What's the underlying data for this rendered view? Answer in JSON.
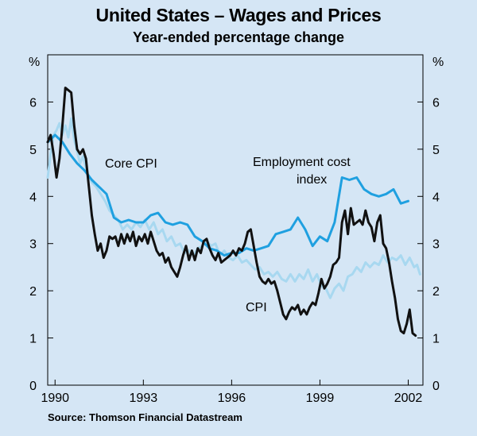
{
  "chart_data": {
    "type": "line",
    "title": "United States – Wages and Prices",
    "subtitle": "Year-ended percentage change",
    "ylabel_left": "%",
    "ylabel_right": "%",
    "ylim": [
      0,
      7
    ],
    "xlim": [
      1989.75,
      2002.5
    ],
    "y_ticks": [
      "0",
      "1",
      "2",
      "3",
      "4",
      "5",
      "6"
    ],
    "x_ticks": [
      {
        "label": "1990",
        "value": 1990
      },
      {
        "label": "1993",
        "value": 1993
      },
      {
        "label": "1996",
        "value": 1996
      },
      {
        "label": "1999",
        "value": 1999
      },
      {
        "label": "2002",
        "value": 2002
      }
    ],
    "series": [
      {
        "name": "Core CPI",
        "color": "#a8d8f0",
        "points": [
          [
            1989.75,
            4.4
          ],
          [
            1989.85,
            4.9
          ],
          [
            1989.95,
            5.3
          ],
          [
            1990.05,
            5.4
          ],
          [
            1990.15,
            5.55
          ],
          [
            1990.25,
            5.3
          ],
          [
            1990.35,
            5.5
          ],
          [
            1990.45,
            5.25
          ],
          [
            1990.55,
            5.65
          ],
          [
            1990.65,
            5.2
          ],
          [
            1990.75,
            4.95
          ],
          [
            1990.85,
            4.7
          ],
          [
            1990.95,
            4.85
          ],
          [
            1991.1,
            4.5
          ],
          [
            1991.25,
            4.3
          ],
          [
            1991.4,
            4.2
          ],
          [
            1991.55,
            4.05
          ],
          [
            1991.7,
            3.9
          ],
          [
            1991.85,
            3.7
          ],
          [
            1992.0,
            3.6
          ],
          [
            1992.15,
            3.5
          ],
          [
            1992.3,
            3.3
          ],
          [
            1992.45,
            3.4
          ],
          [
            1992.6,
            3.3
          ],
          [
            1992.75,
            3.45
          ],
          [
            1992.9,
            3.35
          ],
          [
            1993.05,
            3.5
          ],
          [
            1993.2,
            3.3
          ],
          [
            1993.35,
            3.45
          ],
          [
            1993.5,
            3.2
          ],
          [
            1993.65,
            3.3
          ],
          [
            1993.8,
            3.05
          ],
          [
            1993.95,
            3.15
          ],
          [
            1994.1,
            2.95
          ],
          [
            1994.25,
            3.0
          ],
          [
            1994.4,
            2.8
          ],
          [
            1994.55,
            2.85
          ],
          [
            1994.7,
            2.75
          ],
          [
            1994.85,
            2.9
          ],
          [
            1995.0,
            2.95
          ],
          [
            1995.15,
            3.05
          ],
          [
            1995.3,
            2.95
          ],
          [
            1995.45,
            3.0
          ],
          [
            1995.6,
            2.75
          ],
          [
            1995.75,
            2.85
          ],
          [
            1995.9,
            2.7
          ],
          [
            1996.05,
            2.65
          ],
          [
            1996.2,
            2.75
          ],
          [
            1996.35,
            2.6
          ],
          [
            1996.5,
            2.65
          ],
          [
            1996.65,
            2.55
          ],
          [
            1996.8,
            2.45
          ],
          [
            1996.95,
            2.5
          ],
          [
            1997.1,
            2.35
          ],
          [
            1997.25,
            2.4
          ],
          [
            1997.4,
            2.3
          ],
          [
            1997.55,
            2.4
          ],
          [
            1997.7,
            2.25
          ],
          [
            1997.85,
            2.2
          ],
          [
            1998.0,
            2.35
          ],
          [
            1998.15,
            2.2
          ],
          [
            1998.3,
            2.35
          ],
          [
            1998.45,
            2.25
          ],
          [
            1998.6,
            2.45
          ],
          [
            1998.75,
            2.2
          ],
          [
            1998.9,
            2.35
          ],
          [
            1999.05,
            2.1
          ],
          [
            1999.2,
            2.05
          ],
          [
            1999.35,
            1.85
          ],
          [
            1999.5,
            2.05
          ],
          [
            1999.65,
            2.15
          ],
          [
            1999.8,
            2.0
          ],
          [
            1999.95,
            2.3
          ],
          [
            2000.1,
            2.35
          ],
          [
            2000.25,
            2.5
          ],
          [
            2000.4,
            2.4
          ],
          [
            2000.55,
            2.6
          ],
          [
            2000.7,
            2.5
          ],
          [
            2000.85,
            2.6
          ],
          [
            2001.0,
            2.55
          ],
          [
            2001.15,
            2.75
          ],
          [
            2001.3,
            2.6
          ],
          [
            2001.45,
            2.7
          ],
          [
            2001.6,
            2.65
          ],
          [
            2001.75,
            2.75
          ],
          [
            2001.9,
            2.55
          ],
          [
            2002.05,
            2.7
          ],
          [
            2002.2,
            2.5
          ],
          [
            2002.3,
            2.55
          ],
          [
            2002.4,
            2.35
          ]
        ]
      },
      {
        "name": "Employment cost index",
        "color": "#1fa0e0",
        "points": [
          [
            1989.75,
            5.15
          ],
          [
            1990.0,
            5.3
          ],
          [
            1990.25,
            5.15
          ],
          [
            1990.5,
            4.9
          ],
          [
            1990.75,
            4.7
          ],
          [
            1991.0,
            4.55
          ],
          [
            1991.25,
            4.35
          ],
          [
            1991.5,
            4.2
          ],
          [
            1991.75,
            4.05
          ],
          [
            1992.0,
            3.55
          ],
          [
            1992.25,
            3.45
          ],
          [
            1992.5,
            3.5
          ],
          [
            1992.75,
            3.45
          ],
          [
            1993.0,
            3.45
          ],
          [
            1993.25,
            3.6
          ],
          [
            1993.5,
            3.65
          ],
          [
            1993.75,
            3.45
          ],
          [
            1994.0,
            3.4
          ],
          [
            1994.25,
            3.45
          ],
          [
            1994.5,
            3.4
          ],
          [
            1994.75,
            3.15
          ],
          [
            1995.0,
            3.05
          ],
          [
            1995.25,
            2.9
          ],
          [
            1995.5,
            2.85
          ],
          [
            1995.75,
            2.75
          ],
          [
            1996.0,
            2.8
          ],
          [
            1996.25,
            2.8
          ],
          [
            1996.5,
            2.9
          ],
          [
            1996.75,
            2.85
          ],
          [
            1997.0,
            2.9
          ],
          [
            1997.25,
            2.95
          ],
          [
            1997.5,
            3.2
          ],
          [
            1997.75,
            3.25
          ],
          [
            1998.0,
            3.3
          ],
          [
            1998.25,
            3.55
          ],
          [
            1998.5,
            3.3
          ],
          [
            1998.75,
            2.95
          ],
          [
            1999.0,
            3.15
          ],
          [
            1999.25,
            3.05
          ],
          [
            1999.5,
            3.45
          ],
          [
            1999.75,
            4.4
          ],
          [
            2000.0,
            4.35
          ],
          [
            2000.25,
            4.4
          ],
          [
            2000.5,
            4.15
          ],
          [
            2000.75,
            4.05
          ],
          [
            2001.0,
            4.0
          ],
          [
            2001.25,
            4.05
          ],
          [
            2001.5,
            4.15
          ],
          [
            2001.75,
            3.85
          ],
          [
            2002.0,
            3.9
          ]
        ]
      },
      {
        "name": "CPI",
        "color": "#111111",
        "points": [
          [
            1989.75,
            5.15
          ],
          [
            1989.85,
            5.3
          ],
          [
            1989.95,
            4.9
          ],
          [
            1990.05,
            4.4
          ],
          [
            1990.15,
            4.8
          ],
          [
            1990.25,
            5.5
          ],
          [
            1990.35,
            6.3
          ],
          [
            1990.45,
            6.25
          ],
          [
            1990.55,
            6.2
          ],
          [
            1990.65,
            5.5
          ],
          [
            1990.75,
            5.0
          ],
          [
            1990.85,
            4.9
          ],
          [
            1990.95,
            5.0
          ],
          [
            1991.05,
            4.8
          ],
          [
            1991.15,
            4.2
          ],
          [
            1991.25,
            3.6
          ],
          [
            1991.35,
            3.2
          ],
          [
            1991.45,
            2.85
          ],
          [
            1991.55,
            3.0
          ],
          [
            1991.65,
            2.7
          ],
          [
            1991.75,
            2.85
          ],
          [
            1991.85,
            3.15
          ],
          [
            1991.95,
            3.1
          ],
          [
            1992.05,
            3.15
          ],
          [
            1992.15,
            2.95
          ],
          [
            1992.25,
            3.2
          ],
          [
            1992.35,
            3.0
          ],
          [
            1992.45,
            3.2
          ],
          [
            1992.55,
            3.05
          ],
          [
            1992.65,
            3.25
          ],
          [
            1992.75,
            2.95
          ],
          [
            1992.85,
            3.15
          ],
          [
            1992.95,
            3.05
          ],
          [
            1993.05,
            3.2
          ],
          [
            1993.15,
            3.0
          ],
          [
            1993.25,
            3.25
          ],
          [
            1993.35,
            3.05
          ],
          [
            1993.45,
            2.85
          ],
          [
            1993.55,
            2.75
          ],
          [
            1993.65,
            2.8
          ],
          [
            1993.75,
            2.6
          ],
          [
            1993.85,
            2.7
          ],
          [
            1993.95,
            2.5
          ],
          [
            1994.05,
            2.4
          ],
          [
            1994.15,
            2.3
          ],
          [
            1994.25,
            2.5
          ],
          [
            1994.35,
            2.75
          ],
          [
            1994.45,
            2.95
          ],
          [
            1994.55,
            2.65
          ],
          [
            1994.65,
            2.85
          ],
          [
            1994.75,
            2.65
          ],
          [
            1994.85,
            2.9
          ],
          [
            1994.95,
            2.8
          ],
          [
            1995.05,
            3.05
          ],
          [
            1995.15,
            3.1
          ],
          [
            1995.25,
            2.9
          ],
          [
            1995.35,
            2.75
          ],
          [
            1995.45,
            2.65
          ],
          [
            1995.55,
            2.8
          ],
          [
            1995.65,
            2.6
          ],
          [
            1995.75,
            2.65
          ],
          [
            1995.85,
            2.7
          ],
          [
            1995.95,
            2.75
          ],
          [
            1996.05,
            2.85
          ],
          [
            1996.15,
            2.75
          ],
          [
            1996.25,
            2.9
          ],
          [
            1996.35,
            2.85
          ],
          [
            1996.45,
            3.0
          ],
          [
            1996.55,
            3.25
          ],
          [
            1996.65,
            3.3
          ],
          [
            1996.75,
            2.95
          ],
          [
            1996.85,
            2.6
          ],
          [
            1996.95,
            2.3
          ],
          [
            1997.05,
            2.2
          ],
          [
            1997.15,
            2.15
          ],
          [
            1997.25,
            2.25
          ],
          [
            1997.35,
            2.15
          ],
          [
            1997.45,
            2.2
          ],
          [
            1997.55,
            2.0
          ],
          [
            1997.65,
            1.75
          ],
          [
            1997.75,
            1.5
          ],
          [
            1997.85,
            1.4
          ],
          [
            1997.95,
            1.55
          ],
          [
            1998.05,
            1.65
          ],
          [
            1998.15,
            1.6
          ],
          [
            1998.25,
            1.7
          ],
          [
            1998.35,
            1.5
          ],
          [
            1998.45,
            1.6
          ],
          [
            1998.55,
            1.5
          ],
          [
            1998.65,
            1.65
          ],
          [
            1998.75,
            1.75
          ],
          [
            1998.85,
            1.7
          ],
          [
            1998.95,
            1.95
          ],
          [
            1999.05,
            2.25
          ],
          [
            1999.15,
            2.05
          ],
          [
            1999.25,
            2.15
          ],
          [
            1999.35,
            2.3
          ],
          [
            1999.45,
            2.55
          ],
          [
            1999.55,
            2.6
          ],
          [
            1999.65,
            2.7
          ],
          [
            1999.75,
            3.45
          ],
          [
            1999.85,
            3.7
          ],
          [
            1999.95,
            3.2
          ],
          [
            2000.05,
            3.75
          ],
          [
            2000.15,
            3.4
          ],
          [
            2000.25,
            3.45
          ],
          [
            2000.35,
            3.5
          ],
          [
            2000.45,
            3.4
          ],
          [
            2000.55,
            3.7
          ],
          [
            2000.65,
            3.45
          ],
          [
            2000.75,
            3.35
          ],
          [
            2000.85,
            3.05
          ],
          [
            2000.95,
            3.45
          ],
          [
            2001.05,
            3.6
          ],
          [
            2001.15,
            3.0
          ],
          [
            2001.25,
            2.9
          ],
          [
            2001.35,
            2.6
          ],
          [
            2001.45,
            2.2
          ],
          [
            2001.55,
            1.85
          ],
          [
            2001.65,
            1.4
          ],
          [
            2001.75,
            1.15
          ],
          [
            2001.85,
            1.1
          ],
          [
            2001.95,
            1.3
          ],
          [
            2002.05,
            1.6
          ],
          [
            2002.15,
            1.1
          ],
          [
            2002.25,
            1.05
          ]
        ]
      }
    ],
    "annotations": [
      {
        "text": "Core CPI",
        "series": "Core CPI"
      },
      {
        "text": "Employment cost",
        "series": "Employment cost index"
      },
      {
        "text": "index",
        "series": "Employment cost index"
      },
      {
        "text": "CPI",
        "series": "CPI"
      }
    ],
    "source": "Source: Thomson Financial Datastream"
  }
}
